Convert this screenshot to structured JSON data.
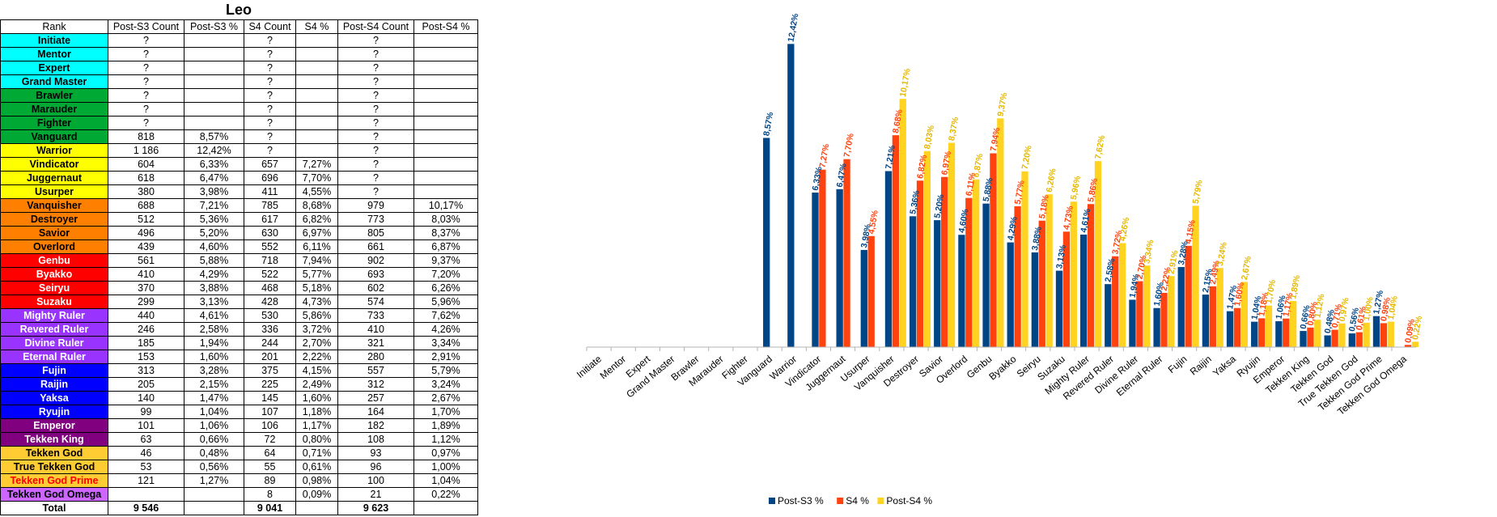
{
  "sheet": {
    "title": "Leo",
    "headers": [
      "Rank",
      "Post-S3 Count",
      "Post-S3 %",
      "S4 Count",
      "S4 %",
      "Post-S4 Count",
      "Post-S4 %"
    ],
    "rows": [
      {
        "rank": "Initiate",
        "bg": "#00ffff",
        "fg": "#000000",
        "c3": "?",
        "p3": "",
        "c4": "?",
        "p4": "",
        "cp4": "?",
        "pp4": ""
      },
      {
        "rank": "Mentor",
        "bg": "#00ffff",
        "fg": "#000000",
        "c3": "?",
        "p3": "",
        "c4": "?",
        "p4": "",
        "cp4": "?",
        "pp4": ""
      },
      {
        "rank": "Expert",
        "bg": "#00ffff",
        "fg": "#000000",
        "c3": "?",
        "p3": "",
        "c4": "?",
        "p4": "",
        "cp4": "?",
        "pp4": ""
      },
      {
        "rank": "Grand Master",
        "bg": "#00ffff",
        "fg": "#000000",
        "c3": "?",
        "p3": "",
        "c4": "?",
        "p4": "",
        "cp4": "?",
        "pp4": ""
      },
      {
        "rank": "Brawler",
        "bg": "#00a933",
        "fg": "#000000",
        "c3": "?",
        "p3": "",
        "c4": "?",
        "p4": "",
        "cp4": "?",
        "pp4": ""
      },
      {
        "rank": "Marauder",
        "bg": "#00a933",
        "fg": "#000000",
        "c3": "?",
        "p3": "",
        "c4": "?",
        "p4": "",
        "cp4": "?",
        "pp4": ""
      },
      {
        "rank": "Fighter",
        "bg": "#00a933",
        "fg": "#000000",
        "c3": "?",
        "p3": "",
        "c4": "?",
        "p4": "",
        "cp4": "?",
        "pp4": ""
      },
      {
        "rank": "Vanguard",
        "bg": "#00a933",
        "fg": "#000000",
        "c3": "818",
        "p3": "8,57%",
        "c4": "?",
        "p4": "",
        "cp4": "?",
        "pp4": ""
      },
      {
        "rank": "Warrior",
        "bg": "#ffff00",
        "fg": "#000000",
        "c3": "1 186",
        "p3": "12,42%",
        "c4": "?",
        "p4": "",
        "cp4": "?",
        "pp4": ""
      },
      {
        "rank": "Vindicator",
        "bg": "#ffff00",
        "fg": "#000000",
        "c3": "604",
        "p3": "6,33%",
        "c4": "657",
        "p4": "7,27%",
        "cp4": "?",
        "pp4": ""
      },
      {
        "rank": "Juggernaut",
        "bg": "#ffff00",
        "fg": "#000000",
        "c3": "618",
        "p3": "6,47%",
        "c4": "696",
        "p4": "7,70%",
        "cp4": "?",
        "pp4": ""
      },
      {
        "rank": "Usurper",
        "bg": "#ffff00",
        "fg": "#000000",
        "c3": "380",
        "p3": "3,98%",
        "c4": "411",
        "p4": "4,55%",
        "cp4": "?",
        "pp4": ""
      },
      {
        "rank": "Vanquisher",
        "bg": "#ff8000",
        "fg": "#000000",
        "c3": "688",
        "p3": "7,21%",
        "c4": "785",
        "p4": "8,68%",
        "cp4": "979",
        "pp4": "10,17%"
      },
      {
        "rank": "Destroyer",
        "bg": "#ff8000",
        "fg": "#000000",
        "c3": "512",
        "p3": "5,36%",
        "c4": "617",
        "p4": "6,82%",
        "cp4": "773",
        "pp4": "8,03%"
      },
      {
        "rank": "Savior",
        "bg": "#ff8000",
        "fg": "#000000",
        "c3": "496",
        "p3": "5,20%",
        "c4": "630",
        "p4": "6,97%",
        "cp4": "805",
        "pp4": "8,37%"
      },
      {
        "rank": "Overlord",
        "bg": "#ff8000",
        "fg": "#000000",
        "c3": "439",
        "p3": "4,60%",
        "c4": "552",
        "p4": "6,11%",
        "cp4": "661",
        "pp4": "6,87%"
      },
      {
        "rank": "Genbu",
        "bg": "#ff0000",
        "fg": "#ffffff",
        "c3": "561",
        "p3": "5,88%",
        "c4": "718",
        "p4": "7,94%",
        "cp4": "902",
        "pp4": "9,37%"
      },
      {
        "rank": "Byakko",
        "bg": "#ff0000",
        "fg": "#ffffff",
        "c3": "410",
        "p3": "4,29%",
        "c4": "522",
        "p4": "5,77%",
        "cp4": "693",
        "pp4": "7,20%"
      },
      {
        "rank": "Seiryu",
        "bg": "#ff0000",
        "fg": "#ffffff",
        "c3": "370",
        "p3": "3,88%",
        "c4": "468",
        "p4": "5,18%",
        "cp4": "602",
        "pp4": "6,26%"
      },
      {
        "rank": "Suzaku",
        "bg": "#ff0000",
        "fg": "#ffffff",
        "c3": "299",
        "p3": "3,13%",
        "c4": "428",
        "p4": "4,73%",
        "cp4": "574",
        "pp4": "5,96%"
      },
      {
        "rank": "Mighty Ruler",
        "bg": "#9933ff",
        "fg": "#ffffff",
        "c3": "440",
        "p3": "4,61%",
        "c4": "530",
        "p4": "5,86%",
        "cp4": "733",
        "pp4": "7,62%"
      },
      {
        "rank": "Revered Ruler",
        "bg": "#9933ff",
        "fg": "#ffffff",
        "c3": "246",
        "p3": "2,58%",
        "c4": "336",
        "p4": "3,72%",
        "cp4": "410",
        "pp4": "4,26%"
      },
      {
        "rank": "Divine Ruler",
        "bg": "#9933ff",
        "fg": "#ffffff",
        "c3": "185",
        "p3": "1,94%",
        "c4": "244",
        "p4": "2,70%",
        "cp4": "321",
        "pp4": "3,34%"
      },
      {
        "rank": "Eternal Ruler",
        "bg": "#9933ff",
        "fg": "#ffffff",
        "c3": "153",
        "p3": "1,60%",
        "c4": "201",
        "p4": "2,22%",
        "cp4": "280",
        "pp4": "2,91%"
      },
      {
        "rank": "Fujin",
        "bg": "#0000ff",
        "fg": "#ffffff",
        "c3": "313",
        "p3": "3,28%",
        "c4": "375",
        "p4": "4,15%",
        "cp4": "557",
        "pp4": "5,79%"
      },
      {
        "rank": "Raijin",
        "bg": "#0000ff",
        "fg": "#ffffff",
        "c3": "205",
        "p3": "2,15%",
        "c4": "225",
        "p4": "2,49%",
        "cp4": "312",
        "pp4": "3,24%"
      },
      {
        "rank": "Yaksa",
        "bg": "#0000ff",
        "fg": "#ffffff",
        "c3": "140",
        "p3": "1,47%",
        "c4": "145",
        "p4": "1,60%",
        "cp4": "257",
        "pp4": "2,67%"
      },
      {
        "rank": "Ryujin",
        "bg": "#0000ff",
        "fg": "#ffffff",
        "c3": "99",
        "p3": "1,04%",
        "c4": "107",
        "p4": "1,18%",
        "cp4": "164",
        "pp4": "1,70%"
      },
      {
        "rank": "Emperor",
        "bg": "#800080",
        "fg": "#ffffff",
        "c3": "101",
        "p3": "1,06%",
        "c4": "106",
        "p4": "1,17%",
        "cp4": "182",
        "pp4": "1,89%"
      },
      {
        "rank": "Tekken King",
        "bg": "#800080",
        "fg": "#ffffff",
        "c3": "63",
        "p3": "0,66%",
        "c4": "72",
        "p4": "0,80%",
        "cp4": "108",
        "pp4": "1,12%"
      },
      {
        "rank": "Tekken God",
        "bg": "#ffcc33",
        "fg": "#000000",
        "c3": "46",
        "p3": "0,48%",
        "c4": "64",
        "p4": "0,71%",
        "cp4": "93",
        "pp4": "0,97%"
      },
      {
        "rank": "True Tekken God",
        "bg": "#ffcc33",
        "fg": "#000000",
        "c3": "53",
        "p3": "0,56%",
        "c4": "55",
        "p4": "0,61%",
        "cp4": "96",
        "pp4": "1,00%"
      },
      {
        "rank": "Tekken God Prime",
        "bg": "#ffcc33",
        "fg": "#ff0000",
        "c3": "121",
        "p3": "1,27%",
        "c4": "89",
        "p4": "0,98%",
        "cp4": "100",
        "pp4": "1,04%"
      },
      {
        "rank": "Tekken God Omega",
        "bg": "#cc66ff",
        "fg": "#000000",
        "c3": "",
        "p3": "",
        "c4": "8",
        "p4": "0,09%",
        "cp4": "21",
        "pp4": "0,22%"
      }
    ],
    "total": {
      "label": "Total",
      "c3": "9 546",
      "p3": "",
      "c4": "9 041",
      "p4": "",
      "cp4": "9 623",
      "pp4": ""
    }
  },
  "chart_data": {
    "type": "bar",
    "categories": [
      "Initiate",
      "Mentor",
      "Expert",
      "Grand Master",
      "Brawler",
      "Marauder",
      "Fighter",
      "Vanguard",
      "Warrior",
      "Vindicator",
      "Juggernaut",
      "Usurper",
      "Vanquisher",
      "Destroyer",
      "Savior",
      "Overlord",
      "Genbu",
      "Byakko",
      "Seiryu",
      "Suzaku",
      "Mighty Ruler",
      "Revered Ruler",
      "Divine Ruler",
      "Eternal Ruler",
      "Fujin",
      "Raijin",
      "Yaksa",
      "Ryujin",
      "Emperor",
      "Tekken King",
      "Tekken God",
      "True Tekken God",
      "Tekken God Prime",
      "Tekken God Omega"
    ],
    "series": [
      {
        "name": "Post-S3 %",
        "color": "#004586",
        "values": [
          null,
          null,
          null,
          null,
          null,
          null,
          null,
          8.57,
          12.42,
          6.33,
          6.47,
          3.98,
          7.21,
          5.36,
          5.2,
          4.6,
          5.88,
          4.29,
          3.88,
          3.13,
          4.61,
          2.58,
          1.94,
          1.6,
          3.28,
          2.15,
          1.47,
          1.04,
          1.06,
          0.66,
          0.48,
          0.56,
          1.27,
          null
        ],
        "labels": [
          "",
          "",
          "",
          "",
          "",
          "",
          "",
          "8,57%",
          "12,42%",
          "6,33%",
          "6,47%",
          "3,98%",
          "7,21%",
          "5,36%",
          "5,20%",
          "4,60%",
          "5,88%",
          "4,29%",
          "3,88%",
          "3,13%",
          "4,61%",
          "2,58%",
          "1,94%",
          "1,60%",
          "3,28%",
          "2,15%",
          "1,47%",
          "1,04%",
          "1,06%",
          "0,66%",
          "0,48%",
          "0,56%",
          "1,27%",
          ""
        ]
      },
      {
        "name": "S4 %",
        "color": "#ff420e",
        "values": [
          null,
          null,
          null,
          null,
          null,
          null,
          null,
          null,
          null,
          7.27,
          7.7,
          4.55,
          8.68,
          6.82,
          6.97,
          6.11,
          7.94,
          5.77,
          5.18,
          4.73,
          5.86,
          3.72,
          2.7,
          2.22,
          4.15,
          2.49,
          1.6,
          1.18,
          1.17,
          0.8,
          0.71,
          0.61,
          0.98,
          0.09
        ],
        "labels": [
          "",
          "",
          "",
          "",
          "",
          "",
          "",
          "",
          "",
          "7,27%",
          "7,70%",
          "4,55%",
          "8,68%",
          "6,82%",
          "6,97%",
          "6,11%",
          "7,94%",
          "5,77%",
          "5,18%",
          "4,73%",
          "5,86%",
          "3,72%",
          "2,70%",
          "2,22%",
          "4,15%",
          "2,49%",
          "1,60%",
          "1,18%",
          "1,17%",
          "0,80%",
          "0,71%",
          "0,61%",
          "0,98%",
          "0,09%"
        ]
      },
      {
        "name": "Post-S4 %",
        "color": "#ffd320",
        "values": [
          null,
          null,
          null,
          null,
          null,
          null,
          null,
          null,
          null,
          null,
          null,
          null,
          10.17,
          8.03,
          8.37,
          6.87,
          9.37,
          7.2,
          6.26,
          5.96,
          7.62,
          4.26,
          3.34,
          2.91,
          5.79,
          3.24,
          2.67,
          1.7,
          1.89,
          1.12,
          0.97,
          1.0,
          1.04,
          0.22
        ],
        "labels": [
          "",
          "",
          "",
          "",
          "",
          "",
          "",
          "",
          "",
          "",
          "",
          "",
          "10,17%",
          "8,03%",
          "8,37%",
          "6,87%",
          "9,37%",
          "7,20%",
          "6,26%",
          "5,96%",
          "7,62%",
          "4,26%",
          "3,34%",
          "2,91%",
          "5,79%",
          "3,24%",
          "2,67%",
          "1,70%",
          "1,89%",
          "1,12%",
          "0,97%",
          "1,00%",
          "1,04%",
          "0,22%"
        ]
      }
    ],
    "ylim": [
      0,
      13
    ],
    "grid": false,
    "legend_position": "bottom"
  }
}
